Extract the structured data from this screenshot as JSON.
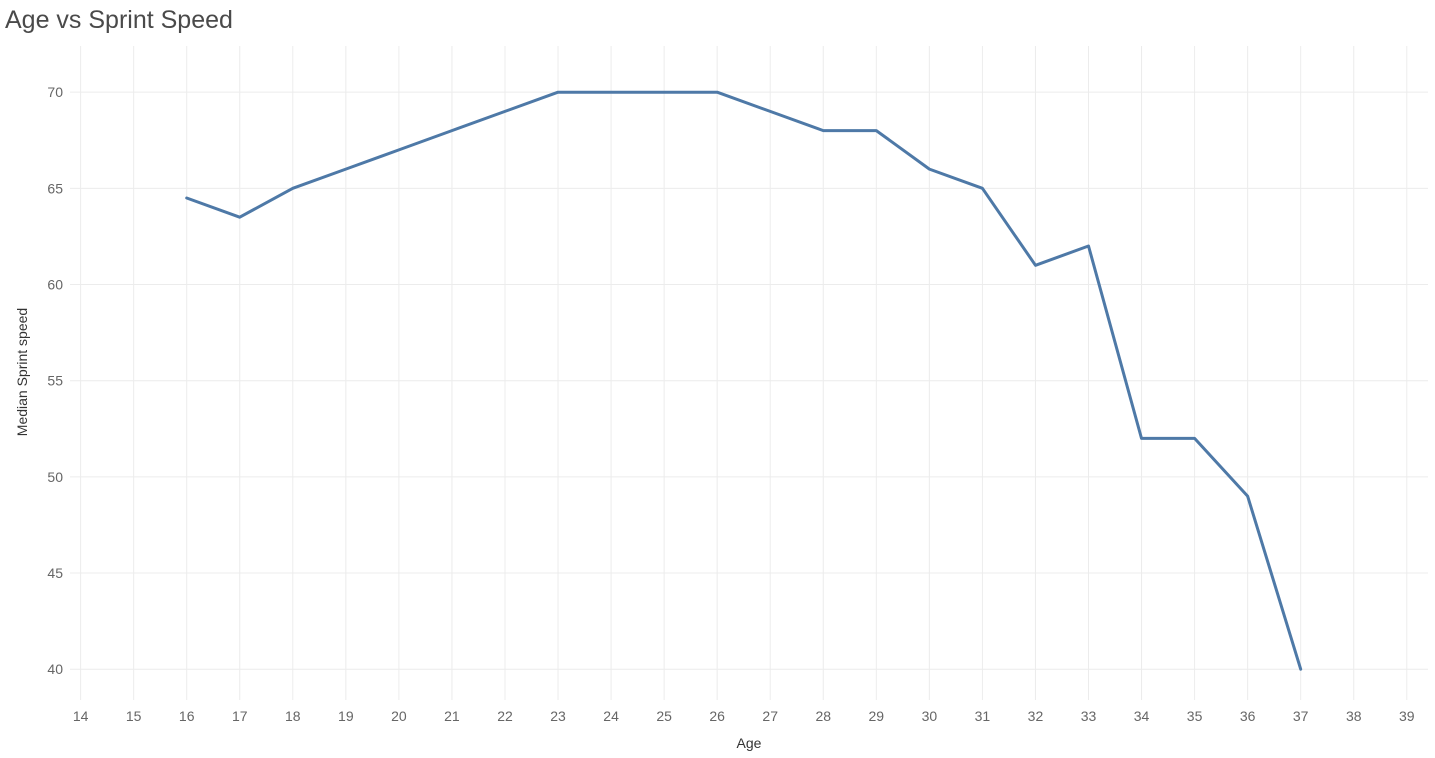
{
  "chart_data": {
    "type": "line",
    "title": "Age vs Sprint Speed",
    "xlabel": "Age",
    "ylabel": "Median Sprint speed",
    "x_ticks": [
      14,
      15,
      16,
      17,
      18,
      19,
      20,
      21,
      22,
      23,
      24,
      25,
      26,
      27,
      28,
      29,
      30,
      31,
      32,
      33,
      34,
      35,
      36,
      37,
      38,
      39
    ],
    "y_ticks": [
      40,
      45,
      50,
      55,
      60,
      65,
      70
    ],
    "xlim": [
      13.8,
      39.4
    ],
    "ylim": [
      38.4,
      72.4
    ],
    "grid": true,
    "line_color": "#4e79a7",
    "series": [
      {
        "x": [
          16,
          17,
          18,
          19,
          20,
          21,
          22,
          23,
          24,
          25,
          26,
          27,
          28,
          29,
          30,
          31,
          32,
          33,
          34,
          35,
          36,
          37
        ],
        "y": [
          64.5,
          63.5,
          65,
          66,
          67,
          68,
          69,
          70,
          70,
          70,
          70,
          69,
          68,
          68,
          66,
          65,
          61,
          62,
          52,
          52,
          49,
          40
        ]
      }
    ]
  }
}
